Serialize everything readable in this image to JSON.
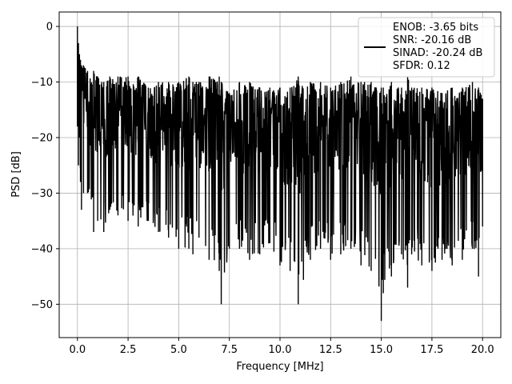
{
  "chart_data": {
    "type": "line",
    "xlabel": "Frequency [MHz]",
    "ylabel": "PSD [dB]",
    "xlim": [
      -0.9,
      20.9
    ],
    "ylim": [
      -56,
      2.6
    ],
    "x_ticks": [
      0.0,
      2.5,
      5.0,
      7.5,
      10.0,
      12.5,
      15.0,
      17.5,
      20.0
    ],
    "x_tick_labels": [
      "0.0",
      "2.5",
      "5.0",
      "7.5",
      "10.0",
      "12.5",
      "15.0",
      "17.5",
      "20.0"
    ],
    "y_ticks": [
      0,
      -10,
      -20,
      -30,
      -40,
      -50
    ],
    "y_tick_labels": [
      "0",
      "−10",
      "−20",
      "−30",
      "−40",
      "−50"
    ],
    "grid": true,
    "legend_position": "top-right",
    "legend_entries": [
      "ENOB: -3.65 bits",
      "SNR: -20.16 dB",
      "SINAD: -20.24 dB",
      "SFDR: 0.12"
    ],
    "series": [
      {
        "color": "#000000",
        "x": [
          0.0,
          0.05,
          0.1,
          0.15,
          0.2,
          0.3,
          0.5,
          0.8,
          1.0,
          1.3,
          1.6,
          2.0,
          2.5,
          3.0,
          3.5,
          4.0,
          4.5,
          5.0,
          5.5,
          5.7,
          6.0,
          6.5,
          7.0,
          7.1,
          7.5,
          8.0,
          8.5,
          9.0,
          9.5,
          10.0,
          10.5,
          10.9,
          11.5,
          12.0,
          12.5,
          13.0,
          13.5,
          14.0,
          14.5,
          15.0,
          15.1,
          15.5,
          16.0,
          16.3,
          16.5,
          17.0,
          17.5,
          18.0,
          18.5,
          19.0,
          19.5,
          19.8,
          20.0
        ],
        "y_max": [
          0,
          -3,
          -5,
          -6,
          -7,
          -7,
          -8,
          -8,
          -9,
          -10,
          -9,
          -9,
          -9,
          -9,
          -11,
          -10,
          -10,
          -10,
          -9,
          -10,
          -10,
          -9,
          -9,
          -10,
          -12,
          -10,
          -10,
          -11,
          -11,
          -11,
          -11,
          -9,
          -10,
          -10,
          -11,
          -10,
          -9,
          -10,
          -10,
          -11,
          -11,
          -10,
          -11,
          -9,
          -11,
          -11,
          -11,
          -12,
          -11,
          -11,
          -10,
          -11,
          -13
        ],
        "y_min": [
          -18,
          -25,
          -20,
          -28,
          -33,
          -30,
          -30,
          -37,
          -35,
          -37,
          -33,
          -34,
          -35,
          -36,
          -35,
          -37,
          -38,
          -40,
          -40,
          -41,
          -38,
          -42,
          -44,
          -50,
          -40,
          -40,
          -42,
          -41,
          -39,
          -43,
          -44,
          -50,
          -42,
          -40,
          -42,
          -41,
          -40,
          -43,
          -44,
          -53,
          -48,
          -45,
          -41,
          -47,
          -41,
          -43,
          -44,
          -42,
          -43,
          -42,
          -40,
          -45,
          -36
        ]
      }
    ]
  }
}
